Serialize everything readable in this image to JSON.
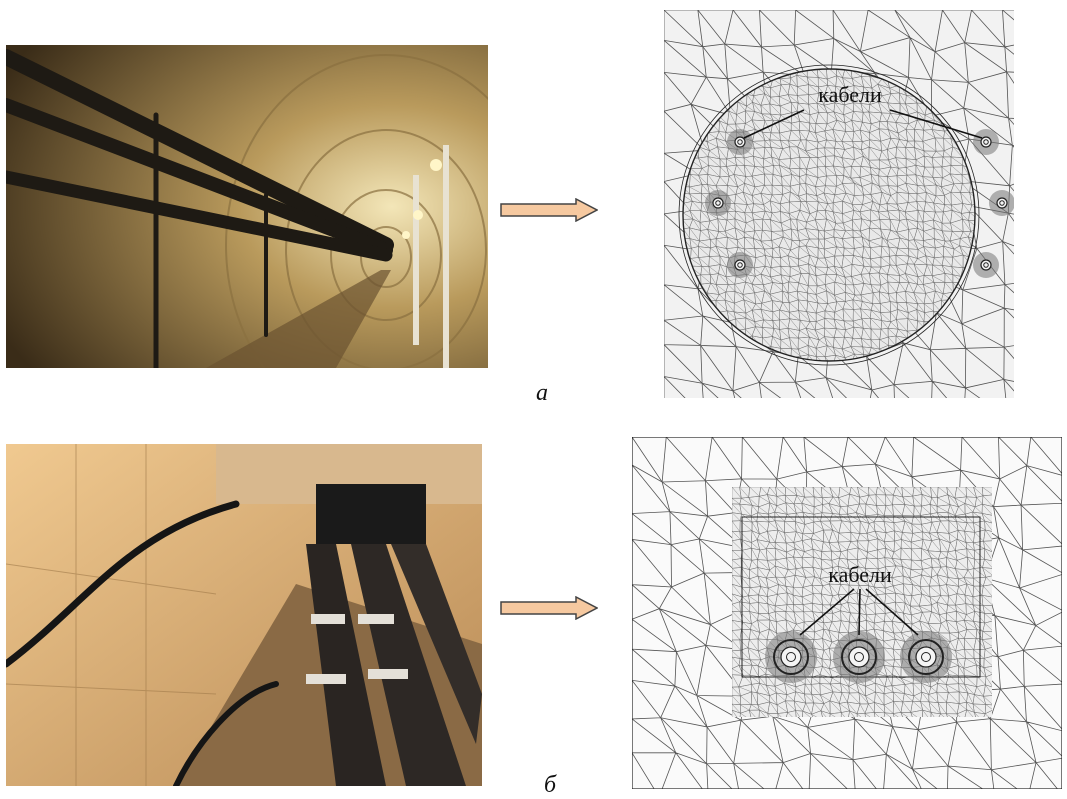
{
  "rows": [
    {
      "letter": "а",
      "mesh_label": "кабели",
      "layout": "circular-tunnel",
      "cable_count": 6
    },
    {
      "letter": "б",
      "mesh_label": "кабели",
      "layout": "rectangular-trench",
      "cable_count": 3
    }
  ],
  "colors": {
    "arrow_fill": "#f6c9a0",
    "arrow_stroke": "#444444",
    "mesh_line": "#555555",
    "mesh_bg": "#f2f2f2"
  },
  "icons": [
    "right-arrow-icon"
  ]
}
